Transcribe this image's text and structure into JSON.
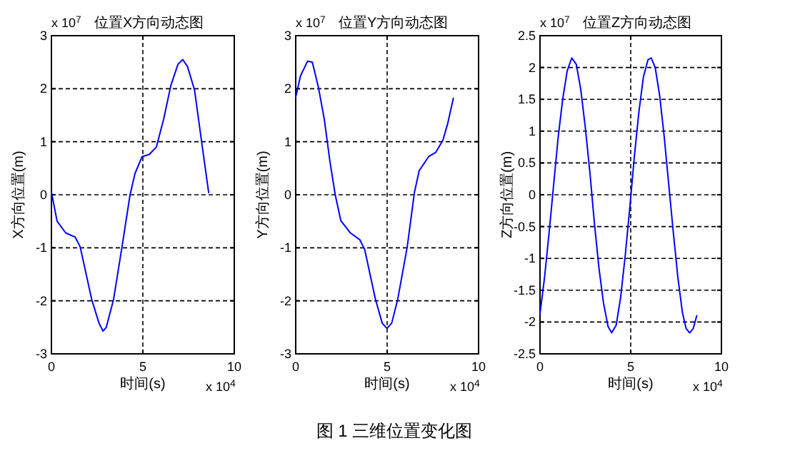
{
  "chart_data": [
    {
      "type": "line",
      "title": "位置X方向动态图",
      "xlabel": "时间(s)",
      "ylabel": "X方向位置(m)",
      "annotations": [
        "x 10$^{7}$",
        "x 10$^{4}$"
      ],
      "xlim": [
        0,
        10
      ],
      "ylim": [
        -3,
        3
      ],
      "xticks": [
        0,
        5,
        10
      ],
      "yticks": [
        -3,
        -2,
        -1,
        0,
        1,
        2,
        3
      ],
      "grid": true,
      "x": [
        0,
        0.31,
        0.78,
        1.3,
        1.57,
        2.2,
        2.6,
        2.82,
        3.0,
        3.4,
        3.86,
        4.3,
        4.57,
        4.96,
        5.35,
        5.74,
        6.14,
        6.53,
        6.92,
        7.18,
        7.44,
        7.83,
        8.22,
        8.6
      ],
      "series": [
        {
          "color": "#0000ff",
          "values": [
            0.05,
            -0.5,
            -0.72,
            -0.8,
            -0.98,
            -1.97,
            -2.42,
            -2.57,
            -2.5,
            -1.97,
            -0.98,
            0,
            0.4,
            0.72,
            0.76,
            0.9,
            1.43,
            2.06,
            2.46,
            2.55,
            2.42,
            1.97,
            0.98,
            0.04
          ]
        }
      ]
    },
    {
      "type": "line",
      "title": "位置Y方向动态图",
      "xlabel": "时间(s)",
      "ylabel": "Y方向位置(m)",
      "annotations": [
        "x 10$^{7}$",
        "x 10$^{4}$",
        "图 1  三维位置变化图"
      ],
      "xlim": [
        0,
        10
      ],
      "ylim": [
        -3,
        3
      ],
      "xticks": [
        0,
        5,
        10
      ],
      "yticks": [
        -3,
        -2,
        -1,
        0,
        1,
        2,
        3
      ],
      "grid": true,
      "x": [
        0,
        0.26,
        0.65,
        0.91,
        1.25,
        1.56,
        1.87,
        2.16,
        2.47,
        2.99,
        3.51,
        3.77,
        4.36,
        4.73,
        4.99,
        5.25,
        5.58,
        6.1,
        6.49,
        6.75,
        7.27,
        7.66,
        8.05,
        8.31,
        8.62
      ],
      "series": [
        {
          "color": "#0000ff",
          "values": [
            1.84,
            2.24,
            2.52,
            2.5,
            2.01,
            1.43,
            0.63,
            0,
            -0.49,
            -0.72,
            -0.85,
            -1.03,
            -1.97,
            -2.42,
            -2.52,
            -2.42,
            -1.97,
            -0.98,
            0.04,
            0.45,
            0.72,
            0.8,
            1.03,
            1.34,
            1.82
          ]
        }
      ]
    },
    {
      "type": "line",
      "title": "位置Z方向动态图",
      "xlabel": "时间(s)",
      "ylabel": "Z方向位置(m)",
      "annotations": [
        "x 10$^{7}$",
        "x 10$^{4}$"
      ],
      "xlim": [
        0,
        10
      ],
      "ylim": [
        -2.5,
        2.5
      ],
      "xticks": [
        0,
        5,
        10
      ],
      "yticks": [
        -2.5,
        -2,
        -1.5,
        -1,
        -0.5,
        0,
        0.5,
        1,
        1.5,
        2,
        2.5
      ],
      "grid": true,
      "x": [
        0,
        0.25,
        0.5,
        0.75,
        1.0,
        1.25,
        1.5,
        1.75,
        2.0,
        2.25,
        2.5,
        2.75,
        3.0,
        3.25,
        3.5,
        3.75,
        3.95,
        4.2,
        4.45,
        4.7,
        4.95,
        5.2,
        5.45,
        5.7,
        5.95,
        6.13,
        6.35,
        6.6,
        6.85,
        7.1,
        7.35,
        7.6,
        7.85,
        8.05,
        8.25,
        8.45,
        8.64
      ],
      "series": [
        {
          "color": "#0000ff",
          "values": [
            -1.87,
            -1.3,
            -0.6,
            0.15,
            0.9,
            1.5,
            1.95,
            2.15,
            2.05,
            1.65,
            1.05,
            0.35,
            -0.45,
            -1.15,
            -1.7,
            -2.07,
            -2.17,
            -2.05,
            -1.6,
            -0.95,
            -0.2,
            0.6,
            1.3,
            1.85,
            2.12,
            2.15,
            2.0,
            1.55,
            0.9,
            0.15,
            -0.6,
            -1.3,
            -1.85,
            -2.1,
            -2.17,
            -2.1,
            -1.9
          ]
        }
      ]
    }
  ]
}
